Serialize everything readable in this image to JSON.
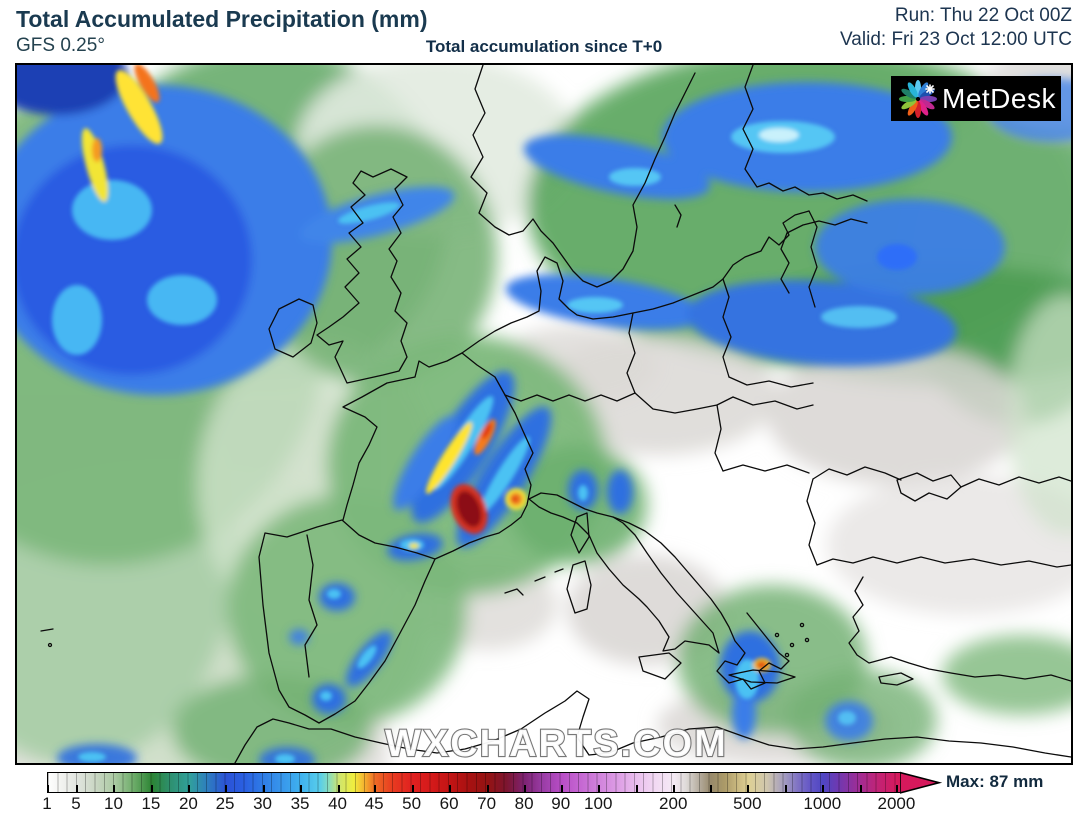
{
  "header": {
    "title": "Total Accumulated Precipitation (mm)",
    "model": "GFS 0.25°",
    "subtitle": "Total accumulation since T+0",
    "run": "Run: Thu 22 Oct 00Z",
    "valid": "Valid: Fri 23 Oct 12:00 UTC",
    "text_color": "#1a3a50"
  },
  "map": {
    "watermark": "WXCHARTS.COM",
    "logo": {
      "text": "MetDesk",
      "bg": "#000000",
      "text_color": "#ffffff",
      "petal_colors": [
        "#5bc8f0",
        "#2e7fd6",
        "#1d4fae",
        "#7a3fb0",
        "#c02890",
        "#e0218a",
        "#d41f2c",
        "#f06018",
        "#8fc43a",
        "#3fa047",
        "#1f7f68",
        "#28b4d8"
      ]
    }
  },
  "colorbar": {
    "unit": "mm",
    "values": [
      1,
      5,
      10,
      15,
      20,
      25,
      30,
      35,
      40,
      45,
      50,
      60,
      70,
      80,
      90,
      100,
      200,
      500,
      1000,
      2000
    ],
    "max_label": "Max: 87 mm",
    "arrow_color": "#d6195c",
    "stops": [
      {
        "p": 0,
        "c": "#ffffff",
        "t": true,
        "l": "1"
      },
      {
        "p": 1.7,
        "c": "#f1f2ef",
        "t": false,
        "l": null
      },
      {
        "p": 3.4,
        "c": "#e1e5df",
        "t": true,
        "l": "5"
      },
      {
        "p": 5.6,
        "c": "#c9d6c3",
        "t": false,
        "l": null
      },
      {
        "p": 7.8,
        "c": "#abcaa3",
        "t": true,
        "l": "10"
      },
      {
        "p": 10.0,
        "c": "#6fad6b",
        "t": false,
        "l": null
      },
      {
        "p": 12.2,
        "c": "#2c8434",
        "t": true,
        "l": "15"
      },
      {
        "p": 14.4,
        "c": "#2e9070",
        "t": false,
        "l": null
      },
      {
        "p": 16.6,
        "c": "#31a09b",
        "t": true,
        "l": "20"
      },
      {
        "p": 18.8,
        "c": "#2e7cc0",
        "t": false,
        "l": null
      },
      {
        "p": 20.9,
        "c": "#2b52d6",
        "t": true,
        "l": "25"
      },
      {
        "p": 23.1,
        "c": "#2a60e2",
        "t": false,
        "l": null
      },
      {
        "p": 25.3,
        "c": "#2f7de6",
        "t": true,
        "l": "30"
      },
      {
        "p": 27.5,
        "c": "#3897ec",
        "t": false,
        "l": null
      },
      {
        "p": 29.7,
        "c": "#3fb2ef",
        "t": true,
        "l": "35"
      },
      {
        "p": 31.9,
        "c": "#58cdea",
        "t": false,
        "l": null
      },
      {
        "p": 32.9,
        "c": "#84dcc2",
        "t": false,
        "l": null
      },
      {
        "p": 34.1,
        "c": "#cde470",
        "t": true,
        "l": "40"
      },
      {
        "p": 35.9,
        "c": "#f0ee3e",
        "t": false,
        "l": null
      },
      {
        "p": 37.2,
        "c": "#f5ae2e",
        "t": false,
        "l": null
      },
      {
        "p": 38.4,
        "c": "#ee6a24",
        "t": true,
        "l": "45"
      },
      {
        "p": 40.5,
        "c": "#e83a20",
        "t": false,
        "l": null
      },
      {
        "p": 42.8,
        "c": "#e02020",
        "t": true,
        "l": "50"
      },
      {
        "p": 45.0,
        "c": "#d41a1a",
        "t": false,
        "l": null
      },
      {
        "p": 47.2,
        "c": "#c21414",
        "t": true,
        "l": "60"
      },
      {
        "p": 49.4,
        "c": "#a81111",
        "t": false,
        "l": null
      },
      {
        "p": 51.6,
        "c": "#951313",
        "t": true,
        "l": "70"
      },
      {
        "p": 53.8,
        "c": "#7d152f",
        "t": false,
        "l": null
      },
      {
        "p": 56.0,
        "c": "#7e2374",
        "t": true,
        "l": "80"
      },
      {
        "p": 58.1,
        "c": "#9a3da6",
        "t": false,
        "l": null
      },
      {
        "p": 60.3,
        "c": "#b84ec6",
        "t": true,
        "l": "90"
      },
      {
        "p": 62.5,
        "c": "#c567d2",
        "t": false,
        "l": null
      },
      {
        "p": 64.7,
        "c": "#d183dc",
        "t": true,
        "l": "100"
      },
      {
        "p": 66.9,
        "c": "#dd9de5",
        "t": false,
        "l": null
      },
      {
        "p": 69.1,
        "c": "#eabfee",
        "t": true,
        "l": null
      },
      {
        "p": 71.3,
        "c": "#f2d9f3",
        "t": false,
        "l": null
      },
      {
        "p": 73.5,
        "c": "#f5eaf4",
        "t": true,
        "l": "200"
      },
      {
        "p": 74.9,
        "c": "#dedad8",
        "t": false,
        "l": null
      },
      {
        "p": 76.4,
        "c": "#b6ad9f",
        "t": false,
        "l": null
      },
      {
        "p": 77.8,
        "c": "#97896b",
        "t": true,
        "l": null
      },
      {
        "p": 79.4,
        "c": "#ab9a68",
        "t": false,
        "l": null
      },
      {
        "p": 80.8,
        "c": "#c7b67e",
        "t": false,
        "l": null
      },
      {
        "p": 82.2,
        "c": "#ded094",
        "t": true,
        "l": "500"
      },
      {
        "p": 84.4,
        "c": "#cfc6ae",
        "t": false,
        "l": null
      },
      {
        "p": 86.6,
        "c": "#9f97c0",
        "t": true,
        "l": null
      },
      {
        "p": 88.0,
        "c": "#7f72c4",
        "t": false,
        "l": null
      },
      {
        "p": 89.5,
        "c": "#6356c6",
        "t": false,
        "l": null
      },
      {
        "p": 91.0,
        "c": "#4f46c3",
        "t": true,
        "l": "1000"
      },
      {
        "p": 92.8,
        "c": "#7038b0",
        "t": false,
        "l": null
      },
      {
        "p": 95.4,
        "c": "#a42c92",
        "t": true,
        "l": null
      },
      {
        "p": 97.2,
        "c": "#bf2478",
        "t": false,
        "l": null
      },
      {
        "p": 99.7,
        "c": "#d6195c",
        "t": true,
        "l": "2000"
      },
      {
        "p": 100,
        "c": "#d6195c",
        "t": false,
        "l": null
      }
    ]
  }
}
